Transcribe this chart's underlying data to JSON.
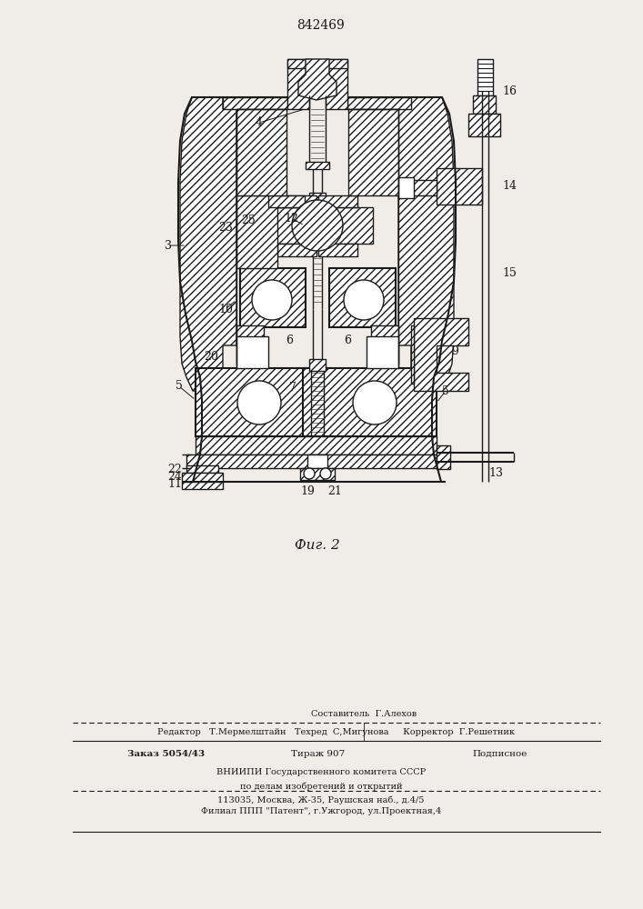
{
  "patent_number": "842469",
  "figure_label": "Фиг. 2",
  "bg": "#f0ede8",
  "lc": "#1a1a1a",
  "footer": {
    "compiler": "Составитель  Г.Алехов",
    "editor_line": "Редактор   Т.Мермелштайн   Техред  С,Мигунова     Корректор  Г.Решетник",
    "order": "Заказ 5054/43",
    "tirazh": "Тираж 907",
    "podpisnoe": "Подписное",
    "org1": "ВНИИПИ Государственного комитета СССР",
    "org2": "по делам изобретений и открытий",
    "org3": "113035, Москва, Ж-35, Раушская наб., д.4/5",
    "branch": "Филиал ППП \"Патент\", г.Ужгород, ул.Проектная,4"
  }
}
